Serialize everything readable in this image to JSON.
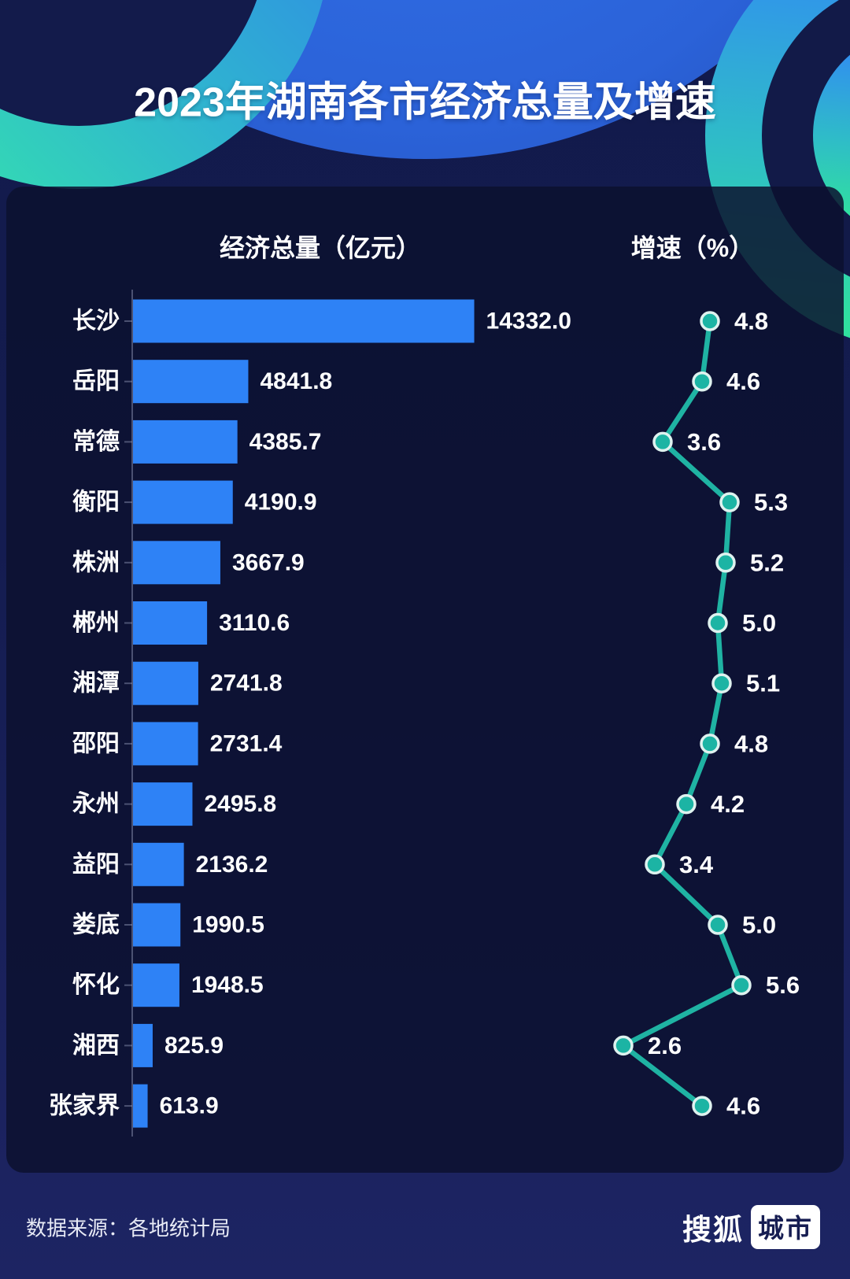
{
  "title": "2023年湖南各市经济总量及增速",
  "columns": {
    "left": "经济总量（亿元）",
    "right": "增速（%）"
  },
  "footer": {
    "source": "数据来源：各地统计局",
    "logo_text": "搜狐",
    "logo_badge": "城市"
  },
  "colors": {
    "bar": "#2E82F6",
    "line": "#1FB3A3",
    "dot_fill": "#1CB4A4",
    "dot_stroke": "#DEF2EF",
    "axis": "rgba(170,178,208,0.40)",
    "accent_blue": "#2F7CEB",
    "accent_green": "#31E3AB"
  },
  "chart_data": {
    "type": "bar",
    "orientation": "horizontal",
    "title": "2023年湖南各市经济总量及增速",
    "categories": [
      "长沙",
      "岳阳",
      "常德",
      "衡阳",
      "株洲",
      "郴州",
      "湘潭",
      "邵阳",
      "永州",
      "益阳",
      "娄底",
      "怀化",
      "湘西",
      "张家界"
    ],
    "series": [
      {
        "name": "经济总量（亿元）",
        "type": "bar",
        "unit": "亿元",
        "values": [
          14332.0,
          4841.8,
          4385.7,
          4190.9,
          3667.9,
          3110.6,
          2741.8,
          2731.4,
          2495.8,
          2136.2,
          1990.5,
          1948.5,
          825.9,
          613.9
        ]
      },
      {
        "name": "增速（%）",
        "type": "line",
        "unit": "%",
        "values": [
          4.8,
          4.6,
          3.6,
          5.3,
          5.2,
          5.0,
          5.1,
          4.8,
          4.2,
          3.4,
          5.0,
          5.6,
          2.6,
          4.6
        ]
      }
    ],
    "value_labels": "shown",
    "bar_axis_range": [
      0,
      14332
    ],
    "growth_axis_range": [
      2.6,
      5.6
    ],
    "grid": "off",
    "legend": "column-headers"
  }
}
